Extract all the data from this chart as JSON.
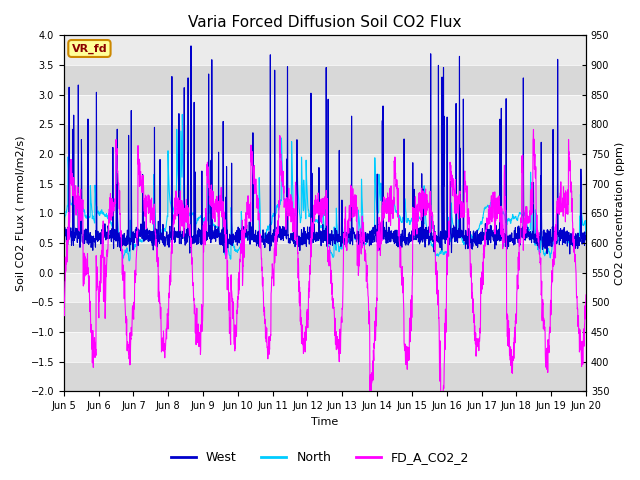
{
  "title": "Varia Forced Diffusion Soil CO2 Flux",
  "xlabel": "Time",
  "ylabel_left": "Soil CO2 FLux ( mmol/m2/s)",
  "ylabel_right": "CO2 Concentration (ppm)",
  "ylim_left": [
    -2.0,
    4.0
  ],
  "ylim_right": [
    350,
    950
  ],
  "yticks_left": [
    -2.0,
    -1.5,
    -1.0,
    -0.5,
    0.0,
    0.5,
    1.0,
    1.5,
    2.0,
    2.5,
    3.0,
    3.5,
    4.0
  ],
  "yticks_right": [
    350,
    400,
    450,
    500,
    550,
    600,
    650,
    700,
    750,
    800,
    850,
    900,
    950
  ],
  "n_days": 15,
  "points_per_day": 144,
  "west_color": "#0000CC",
  "north_color": "#00CCFF",
  "co2_color": "#FF00FF",
  "west_lw": 0.8,
  "north_lw": 0.8,
  "co2_lw": 0.8,
  "legend_labels": [
    "West",
    "North",
    "FD_A_CO2_2"
  ],
  "annotation_text": "VR_fd",
  "annotation_bg": "#FFFF99",
  "annotation_border": "#CC8800",
  "band_light": "#EBEBEB",
  "band_dark": "#D8D8D8",
  "title_fontsize": 11,
  "figsize": [
    6.4,
    4.8
  ],
  "dpi": 100
}
